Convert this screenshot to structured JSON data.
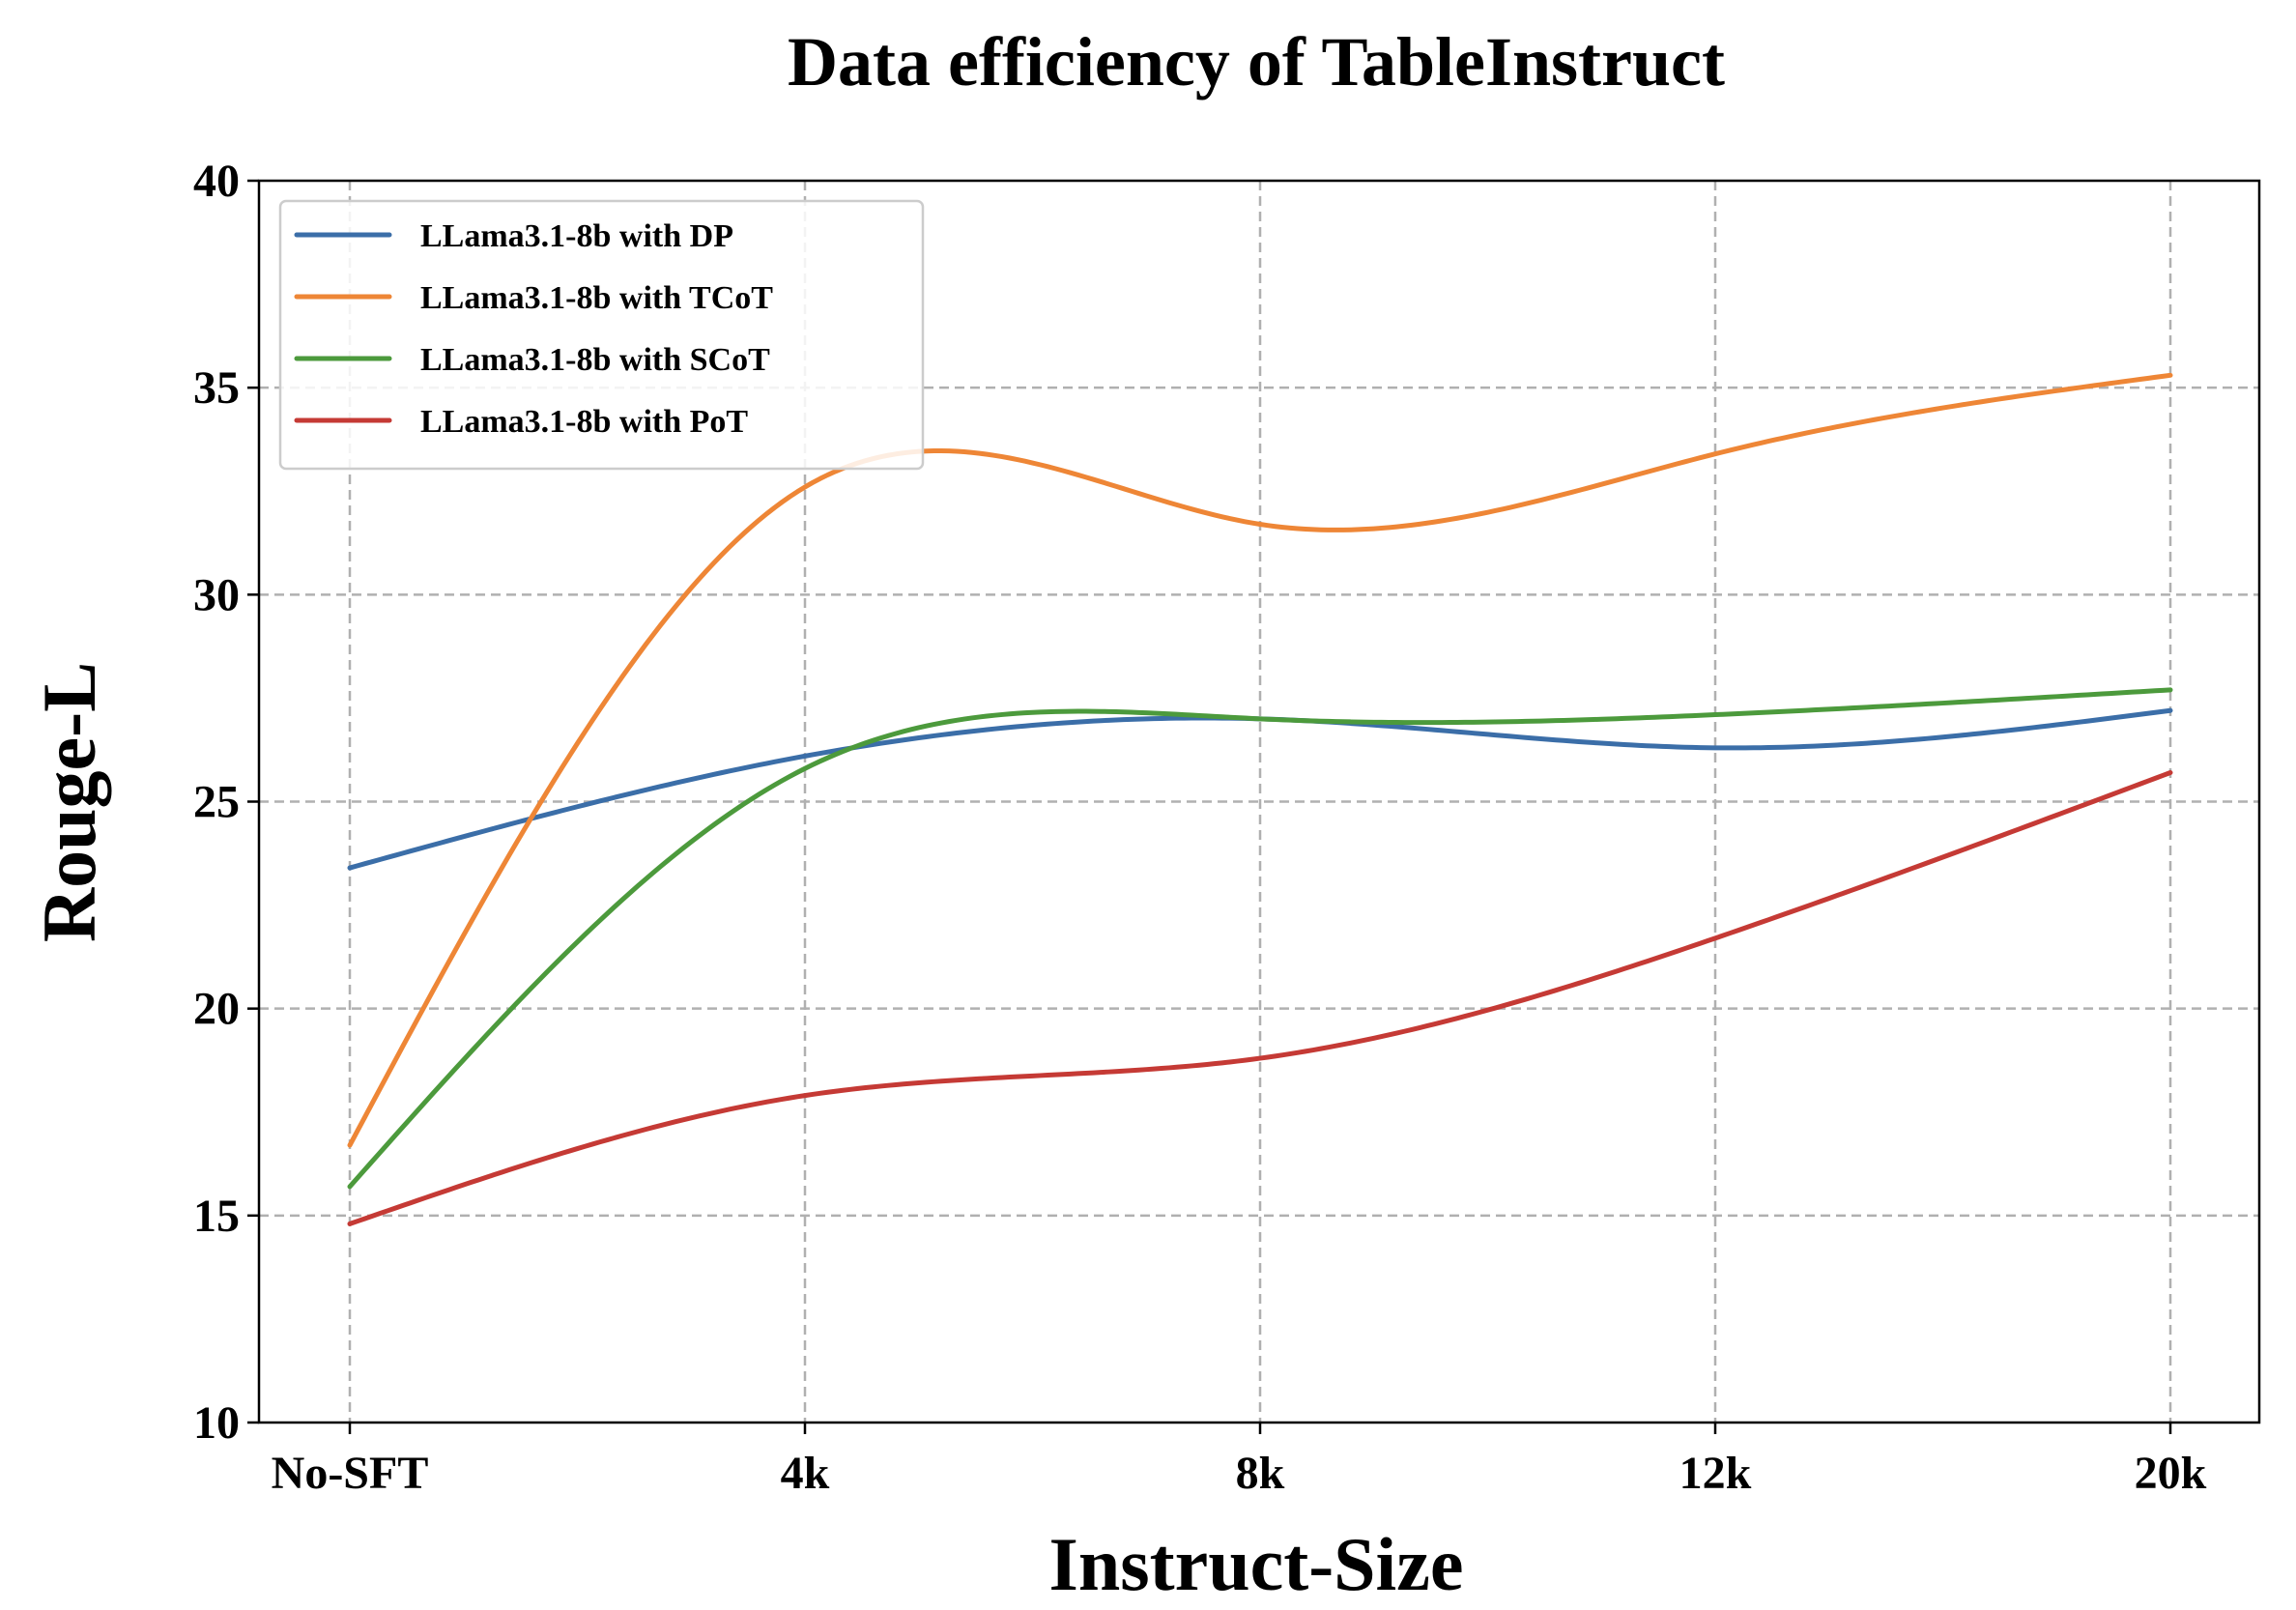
{
  "chart_data": {
    "type": "line",
    "title": "Data efficiency of TableInstruct",
    "xlabel": "Instruct-Size",
    "ylabel": "Rouge-L",
    "categories": [
      "No-SFT",
      "4k",
      "8k",
      "12k",
      "20k"
    ],
    "ylim": [
      10,
      40
    ],
    "yticks": [
      10,
      15,
      20,
      25,
      30,
      35,
      40
    ],
    "grid": true,
    "smooth": true,
    "legend_position": "top-left",
    "series": [
      {
        "name": "LLama3.1-8b with DP",
        "color": "#3b6ea8",
        "values": [
          23.4,
          26.1,
          27.0,
          26.3,
          27.2
        ]
      },
      {
        "name": "LLama3.1-8b with TCoT",
        "color": "#ee8636",
        "values": [
          16.7,
          32.6,
          31.7,
          33.4,
          35.3
        ]
      },
      {
        "name": "LLama3.1-8b with SCoT",
        "color": "#4c9a3c",
        "values": [
          15.7,
          25.8,
          27.0,
          27.1,
          27.7
        ]
      },
      {
        "name": "LLama3.1-8b with PoT",
        "color": "#c53a35",
        "values": [
          14.8,
          17.9,
          18.8,
          21.7,
          25.7
        ]
      }
    ]
  }
}
